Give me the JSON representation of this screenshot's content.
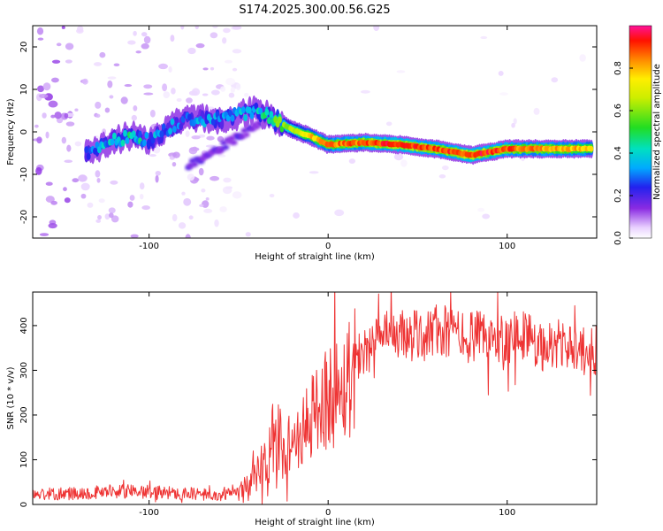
{
  "title": "S174.2025.300.00.56.G25",
  "chart_data": [
    {
      "type": "heatmap",
      "xlabel": "Height of straight line (km)",
      "ylabel": "Frequency (Hz)",
      "xlim": [
        -165,
        150
      ],
      "ylim": [
        -25,
        25
      ],
      "xticks": [
        -100,
        0,
        100
      ],
      "yticks": [
        -20,
        -10,
        0,
        10,
        20
      ],
      "xtick_labels": [
        "-100",
        "0",
        "100"
      ],
      "ytick_labels": [
        "-20",
        "-10",
        "0",
        "10",
        "20"
      ],
      "ridge": [
        {
          "x": -135,
          "f": -5.0,
          "a": 0.25
        },
        {
          "x": -120,
          "f": -2.0,
          "a": 0.35
        },
        {
          "x": -110,
          "f": -1.0,
          "a": 0.4
        },
        {
          "x": -100,
          "f": -2.0,
          "a": 0.3
        },
        {
          "x": -80,
          "f": 3.0,
          "a": 0.25
        },
        {
          "x": -60,
          "f": 3.0,
          "a": 0.3
        },
        {
          "x": -40,
          "f": 5.0,
          "a": 0.3
        },
        {
          "x": -30,
          "f": 3.0,
          "a": 0.55
        },
        {
          "x": -20,
          "f": 0.5,
          "a": 0.6
        },
        {
          "x": -10,
          "f": -1.0,
          "a": 0.75
        },
        {
          "x": 0,
          "f": -3.0,
          "a": 0.8
        },
        {
          "x": 20,
          "f": -2.5,
          "a": 0.85
        },
        {
          "x": 40,
          "f": -3.0,
          "a": 0.9
        },
        {
          "x": 60,
          "f": -4.0,
          "a": 0.85
        },
        {
          "x": 80,
          "f": -5.5,
          "a": 0.9
        },
        {
          "x": 100,
          "f": -4.0,
          "a": 0.85
        },
        {
          "x": 120,
          "f": -4.0,
          "a": 0.8
        },
        {
          "x": 148,
          "f": -4.0,
          "a": 0.75
        }
      ],
      "colorbar": {
        "label": "Normalized spectral amplitude",
        "range": [
          0,
          1
        ],
        "ticks": [
          0.0,
          0.2,
          0.4,
          0.6,
          0.8
        ],
        "tick_labels": [
          "0.0",
          "0.2",
          "0.4",
          "0.6",
          "0.8"
        ]
      }
    },
    {
      "type": "line",
      "xlabel": "Height of straight line (km)",
      "ylabel": "SNR (10 * v/v)",
      "xlim": [
        -165,
        150
      ],
      "ylim": [
        0,
        475
      ],
      "xticks": [
        -100,
        0,
        100
      ],
      "yticks": [
        0,
        100,
        200,
        300,
        400
      ],
      "xtick_labels": [
        "-100",
        "0",
        "100"
      ],
      "ytick_labels": [
        "0",
        "100",
        "200",
        "300",
        "400"
      ],
      "color": "#ee3333",
      "series": [
        {
          "name": "SNR",
          "x": [
            -165,
            -140,
            -120,
            -100,
            -80,
            -60,
            -50,
            -45,
            -40,
            -35,
            -30,
            -25,
            -20,
            -15,
            -10,
            -5,
            0,
            5,
            10,
            15,
            20,
            30,
            40,
            50,
            60,
            70,
            80,
            90,
            100,
            110,
            120,
            130,
            140,
            150
          ],
          "y": [
            22,
            25,
            30,
            28,
            25,
            20,
            25,
            40,
            60,
            95,
            130,
            135,
            140,
            150,
            190,
            225,
            240,
            255,
            275,
            325,
            345,
            370,
            380,
            375,
            390,
            380,
            375,
            370,
            375,
            380,
            350,
            360,
            340,
            345
          ]
        }
      ]
    }
  ]
}
